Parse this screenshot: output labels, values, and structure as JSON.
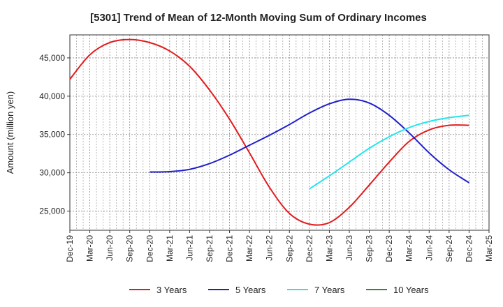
{
  "chart_data": {
    "type": "line",
    "title": "[5301]  Trend of Mean of 12-Month Moving Sum of Ordinary Incomes",
    "xlabel": "",
    "ylabel": "Amount (million yen)",
    "ylim": [
      22500,
      48000
    ],
    "yticks": [
      25000,
      30000,
      35000,
      40000,
      45000
    ],
    "ytick_labels": [
      "25,000",
      "30,000",
      "35,000",
      "40,000",
      "45,000"
    ],
    "grid": true,
    "x_categories": [
      "Dec-19",
      "Mar-20",
      "Jun-20",
      "Sep-20",
      "Dec-20",
      "Mar-21",
      "Jun-21",
      "Sep-21",
      "Dec-21",
      "Mar-22",
      "Jun-22",
      "Sep-22",
      "Dec-22",
      "Mar-23",
      "Jun-23",
      "Sep-23",
      "Dec-23",
      "Mar-24",
      "Jun-24",
      "Sep-24",
      "Dec-24",
      "Mar-25"
    ],
    "series": [
      {
        "name": "3 Years",
        "color": "#e41a1c",
        "values": [
          42200,
          45400,
          47000,
          47400,
          47000,
          45900,
          43900,
          40800,
          37000,
          32600,
          28100,
          24700,
          23300,
          23500,
          25500,
          28400,
          31400,
          34100,
          35600,
          36200,
          36200,
          null
        ]
      },
      {
        "name": "5 Years",
        "color": "#1f1fcc",
        "values": [
          null,
          null,
          null,
          null,
          30100,
          30150,
          30450,
          31200,
          32300,
          33600,
          34900,
          36300,
          37800,
          39000,
          39600,
          39100,
          37500,
          35200,
          32600,
          30400,
          28700,
          null
        ]
      },
      {
        "name": "7 Years",
        "color": "#22e5ee",
        "values": [
          null,
          null,
          null,
          null,
          null,
          null,
          null,
          null,
          null,
          null,
          null,
          null,
          27900,
          29600,
          31400,
          33200,
          34700,
          35900,
          36700,
          37200,
          37500,
          null
        ]
      },
      {
        "name": "10 Years",
        "color": "#2e8b2e",
        "values": [
          null,
          null,
          null,
          null,
          null,
          null,
          null,
          null,
          null,
          null,
          null,
          null,
          null,
          null,
          null,
          null,
          null,
          null,
          null,
          null,
          null,
          null
        ]
      }
    ],
    "legend_position": "bottom"
  }
}
